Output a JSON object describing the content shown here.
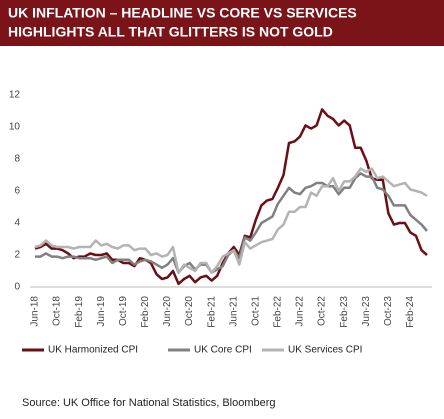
{
  "chart_data": {
    "type": "line",
    "title": "UK INFLATION – HEADLINE VS CORE VS SERVICES",
    "subtitle": "HIGHLIGHTS ALL THAT GLITTERS IS NOT GOLD",
    "source": "Source: UK Office for National Statistics, Bloomberg",
    "categories": [
      "Jun-18",
      null,
      null,
      null,
      "Oct-18",
      null,
      null,
      null,
      "Feb-19",
      null,
      null,
      null,
      "Jun-19",
      null,
      null,
      null,
      "Oct-19",
      null,
      null,
      null,
      "Feb-20",
      null,
      null,
      null,
      "Jun-20",
      null,
      null,
      null,
      "Oct-20",
      null,
      null,
      null,
      "Feb-21",
      null,
      null,
      null,
      "Jun-21",
      null,
      null,
      null,
      "Oct-21",
      null,
      null,
      null,
      "Feb-22",
      null,
      null,
      null,
      "Jun-22",
      null,
      null,
      null,
      "Oct-22",
      null,
      null,
      null,
      "Feb-23",
      null,
      null,
      null,
      "Jun-23",
      null,
      null,
      null,
      "Oct-23",
      null,
      null,
      null,
      "Feb-24",
      null,
      null,
      null
    ],
    "ylim": [
      0,
      12
    ],
    "yticks": [
      0,
      2,
      4,
      6,
      8,
      10,
      12
    ],
    "series": [
      {
        "name": "UK Harmonized CPI",
        "color": "#6b0f14",
        "values": [
          2.4,
          2.5,
          2.7,
          2.4,
          2.4,
          2.3,
          2.1,
          1.8,
          1.9,
          1.9,
          2.1,
          2.0,
          2.0,
          2.1,
          1.7,
          1.7,
          1.5,
          1.5,
          1.3,
          1.8,
          1.7,
          1.5,
          0.8,
          0.5,
          0.6,
          1.0,
          0.2,
          0.5,
          0.7,
          0.3,
          0.6,
          0.7,
          0.4,
          0.7,
          1.5,
          2.1,
          2.5,
          2.0,
          3.2,
          3.1,
          4.2,
          5.1,
          5.4,
          5.5,
          6.2,
          7.0,
          9.0,
          9.1,
          9.4,
          10.1,
          9.9,
          10.1,
          11.1,
          10.7,
          10.5,
          10.1,
          10.4,
          10.1,
          8.7,
          8.7,
          7.9,
          6.8,
          6.7,
          6.7,
          4.6,
          3.9,
          4.0,
          4.0,
          3.4,
          3.2,
          2.3,
          2.0
        ]
      },
      {
        "name": "UK Core CPI",
        "color": "#808080",
        "values": [
          1.9,
          1.9,
          2.1,
          1.9,
          1.9,
          1.8,
          1.9,
          1.9,
          1.8,
          1.8,
          1.8,
          1.7,
          1.8,
          1.9,
          1.5,
          1.7,
          1.7,
          1.7,
          1.4,
          1.6,
          1.7,
          1.6,
          1.4,
          1.2,
          1.4,
          1.8,
          0.9,
          1.3,
          1.5,
          1.1,
          1.4,
          1.4,
          0.9,
          1.1,
          1.3,
          2.0,
          2.3,
          1.8,
          3.1,
          2.9,
          3.4,
          4.0,
          4.2,
          4.4,
          5.2,
          5.7,
          6.2,
          5.9,
          5.8,
          6.2,
          6.3,
          6.5,
          6.5,
          6.3,
          6.3,
          5.8,
          6.2,
          6.2,
          6.8,
          7.1,
          6.9,
          6.9,
          6.2,
          6.1,
          5.7,
          5.1,
          5.1,
          5.1,
          4.5,
          4.2,
          3.9,
          3.5
        ]
      },
      {
        "name": "UK Services CPI",
        "color": "#b3b3b3",
        "values": [
          2.5,
          2.6,
          2.9,
          2.6,
          2.5,
          2.5,
          2.5,
          2.4,
          2.5,
          2.5,
          2.5,
          2.9,
          2.6,
          2.7,
          2.5,
          2.4,
          2.6,
          2.6,
          2.3,
          2.4,
          2.4,
          2.0,
          2.1,
          1.9,
          2.0,
          2.5,
          0.9,
          1.4,
          1.2,
          1.0,
          1.5,
          1.5,
          0.9,
          1.3,
          1.9,
          2.1,
          2.3,
          1.4,
          2.8,
          2.4,
          2.6,
          2.8,
          2.9,
          3.0,
          3.6,
          3.9,
          4.7,
          4.7,
          5.0,
          5.0,
          5.9,
          5.7,
          6.3,
          6.3,
          6.8,
          6.0,
          6.6,
          6.6,
          6.9,
          7.4,
          7.2,
          7.4,
          6.8,
          6.9,
          6.6,
          6.3,
          6.4,
          6.5,
          6.1,
          6.0,
          5.9,
          5.7
        ]
      }
    ]
  }
}
